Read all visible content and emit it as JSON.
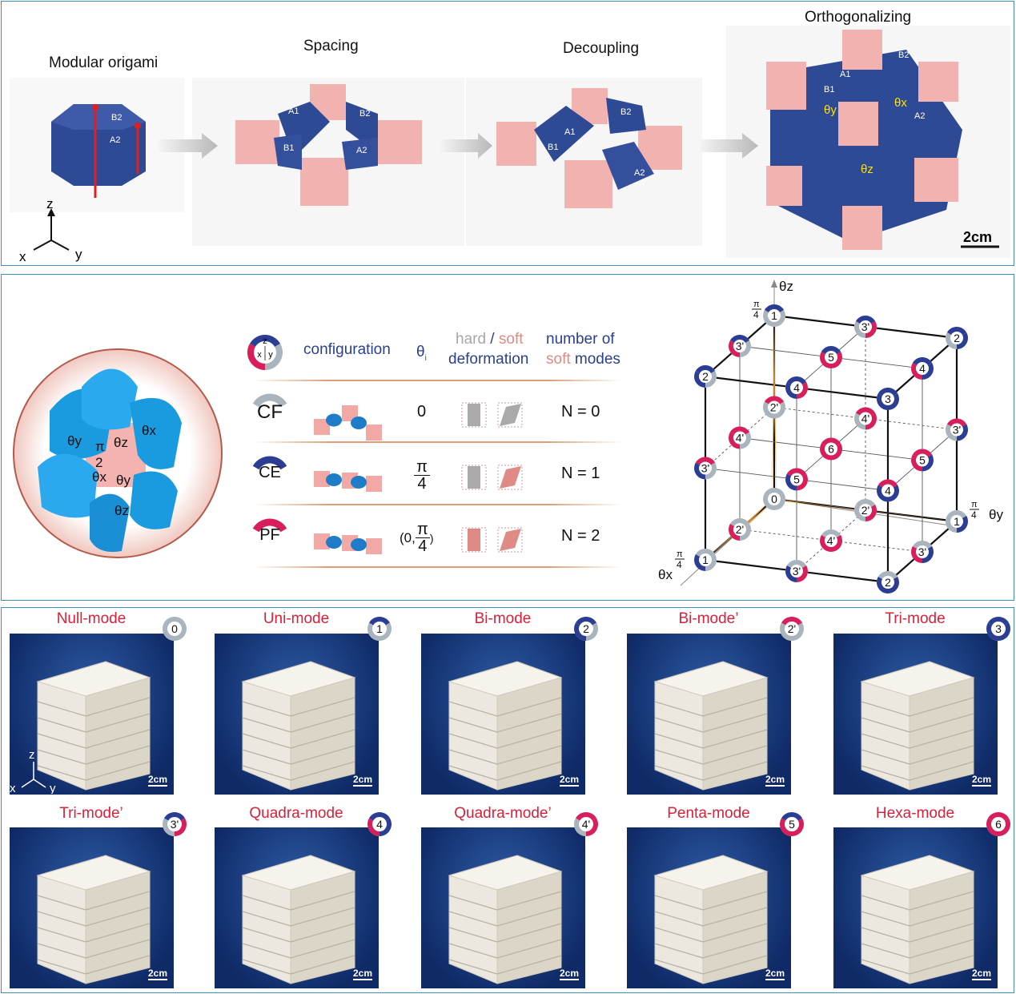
{
  "colors": {
    "border": "#3f8fb8",
    "CF": "#a9b4bd",
    "CE": "#2c3e94",
    "PF": "#d81e5b",
    "soft": "#e08a86",
    "title_red": "#d8213a",
    "photo_bg": "#1c3f86"
  },
  "top": {
    "stages": [
      {
        "title": "Modular origami",
        "labels": [
          "B2",
          "A2"
        ]
      },
      {
        "title": "Spacing",
        "labels": [
          "A1",
          "B2",
          "B1",
          "A2"
        ]
      },
      {
        "title": "Decoupling",
        "labels": [
          "A1",
          "B2",
          "B1",
          "A2"
        ]
      },
      {
        "title": "Orthogonalizing",
        "labels": [
          "B2",
          "A1",
          "B1",
          "A2"
        ]
      }
    ],
    "angles": [
      "θy",
      "θx",
      "θz"
    ],
    "axes": {
      "z": "z",
      "x": "x",
      "y": "y"
    },
    "scale_bar": "2cm"
  },
  "middle": {
    "unit_labels": {
      "pi2": "π",
      "two": "2",
      "theta_y": "θy",
      "theta_z": "θz",
      "theta_x": "θx",
      "theta_x2": "θx",
      "theta_y2": "θy",
      "theta_z2": "θz"
    },
    "legend_axes": {
      "z": "z",
      "x": "x",
      "y": "y"
    },
    "header": {
      "configuration": "configuration",
      "theta": "θ",
      "theta_sub": "i",
      "hard": "hard",
      "slash": " / ",
      "soft": "soft",
      "deformation": "deformation",
      "number_of": "number of",
      "soft_word": "soft",
      "modes": " modes"
    },
    "rows": [
      {
        "name": "CF",
        "state": "CF",
        "theta": "0",
        "theta_frac": null,
        "n": "N = 0"
      },
      {
        "name": "CE",
        "state": "CE",
        "theta_num": "π",
        "theta_den": "4",
        "n": "N = 1"
      },
      {
        "name": "PF",
        "state": "PF",
        "theta_prefix": "(0,",
        "theta_num": "π",
        "theta_den": "4",
        "theta_suffix": ")",
        "n": "N = 2"
      }
    ],
    "cube": {
      "axis_labels": {
        "z": "θz",
        "y": "θy",
        "x": "θx"
      },
      "tick_num": "π",
      "tick_den": "4",
      "nodes": [
        {
          "label": "0",
          "x": "CF",
          "y": "CF",
          "z": "CF"
        },
        {
          "label": "2'",
          "x": "CF",
          "y": "CF",
          "z": "PF"
        },
        {
          "label": "1",
          "x": "CF",
          "y": "CF",
          "z": "CE"
        },
        {
          "label": "2'",
          "x": "CF",
          "y": "PF",
          "z": "CF"
        },
        {
          "label": "4'",
          "x": "CF",
          "y": "PF",
          "z": "PF"
        },
        {
          "label": "3'",
          "x": "CF",
          "y": "PF",
          "z": "CE"
        },
        {
          "label": "1",
          "x": "CF",
          "y": "CE",
          "z": "CF"
        },
        {
          "label": "3'",
          "x": "CF",
          "y": "CE",
          "z": "PF"
        },
        {
          "label": "2",
          "x": "CF",
          "y": "CE",
          "z": "CE"
        },
        {
          "label": "2'",
          "x": "PF",
          "y": "CF",
          "z": "CF"
        },
        {
          "label": "4'",
          "x": "PF",
          "y": "CF",
          "z": "PF"
        },
        {
          "label": "3'",
          "x": "PF",
          "y": "CF",
          "z": "CE"
        },
        {
          "label": "4'",
          "x": "PF",
          "y": "PF",
          "z": "CF"
        },
        {
          "label": "6",
          "x": "PF",
          "y": "PF",
          "z": "PF"
        },
        {
          "label": "5",
          "x": "PF",
          "y": "PF",
          "z": "CE"
        },
        {
          "label": "3'",
          "x": "PF",
          "y": "CE",
          "z": "CF"
        },
        {
          "label": "5",
          "x": "PF",
          "y": "CE",
          "z": "PF"
        },
        {
          "label": "4",
          "x": "PF",
          "y": "CE",
          "z": "CE"
        },
        {
          "label": "1",
          "x": "CE",
          "y": "CF",
          "z": "CF"
        },
        {
          "label": "3'",
          "x": "CE",
          "y": "CF",
          "z": "PF"
        },
        {
          "label": "2",
          "x": "CE",
          "y": "CF",
          "z": "CE"
        },
        {
          "label": "3'",
          "x": "CE",
          "y": "PF",
          "z": "CF"
        },
        {
          "label": "5",
          "x": "CE",
          "y": "PF",
          "z": "PF"
        },
        {
          "label": "4",
          "x": "CE",
          "y": "PF",
          "z": "CE"
        },
        {
          "label": "2",
          "x": "CE",
          "y": "CE",
          "z": "CF"
        },
        {
          "label": "4",
          "x": "CE",
          "y": "CE",
          "z": "PF"
        },
        {
          "label": "3",
          "x": "CE",
          "y": "CE",
          "z": "CE"
        }
      ]
    }
  },
  "bottom": {
    "tiles": [
      {
        "title": "Null-mode",
        "badge": "0",
        "x": "CF",
        "y": "CF",
        "z": "CF",
        "scale": "2cm",
        "axes": true
      },
      {
        "title": "Uni-mode",
        "badge": "1",
        "x": "CF",
        "y": "CF",
        "z": "CE",
        "scale": "2cm"
      },
      {
        "title": "Bi-mode",
        "badge": "2",
        "x": "CE",
        "y": "CF",
        "z": "CE",
        "scale": "2cm"
      },
      {
        "title": "Bi-mode’",
        "badge": "2'",
        "x": "CF",
        "y": "CF",
        "z": "PF",
        "scale": "2cm"
      },
      {
        "title": "Tri-mode",
        "badge": "3",
        "x": "CE",
        "y": "CE",
        "z": "CE",
        "scale": "2cm"
      },
      {
        "title": "Tri-mode’",
        "badge": "3'",
        "x": "CF",
        "y": "PF",
        "z": "CE",
        "scale": "2cm"
      },
      {
        "title": "Quadra-mode",
        "badge": "4",
        "x": "PF",
        "y": "CE",
        "z": "CE",
        "scale": "2cm"
      },
      {
        "title": "Quadra-mode’",
        "badge": "4'",
        "x": "CF",
        "y": "PF",
        "z": "PF",
        "scale": "2cm"
      },
      {
        "title": "Penta-mode",
        "badge": "5",
        "x": "PF",
        "y": "PF",
        "z": "CE",
        "scale": "2cm"
      },
      {
        "title": "Hexa-mode",
        "badge": "6",
        "x": "PF",
        "y": "PF",
        "z": "PF",
        "scale": "2cm"
      }
    ],
    "axes": {
      "z": "z",
      "x": "x",
      "y": "y"
    }
  }
}
